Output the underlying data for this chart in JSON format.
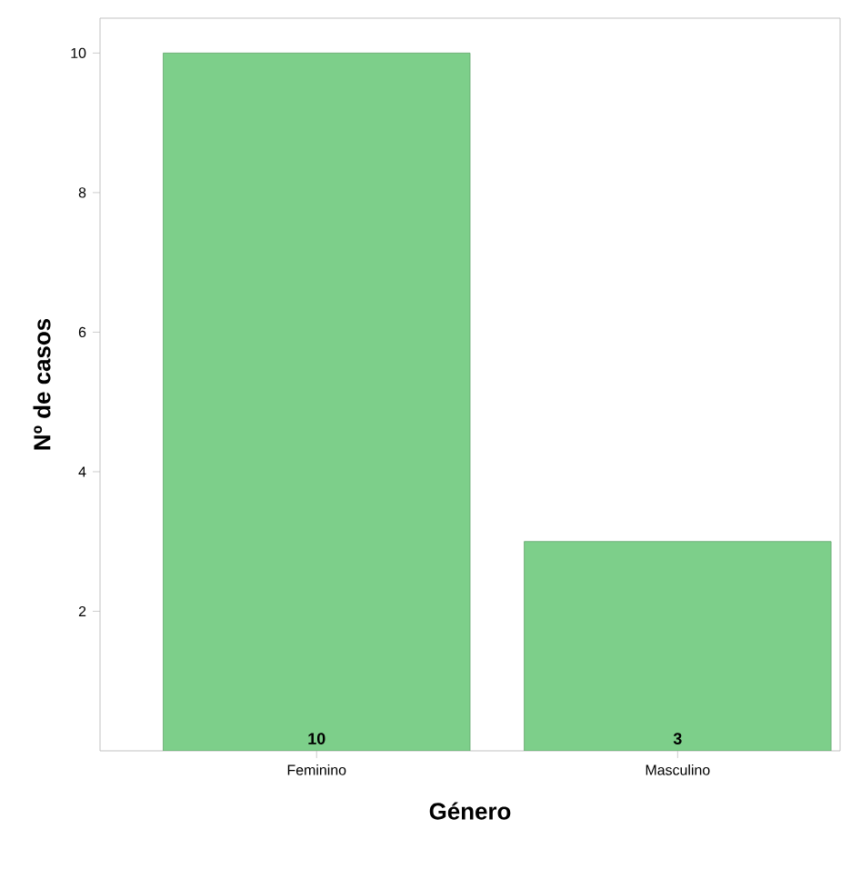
{
  "chart_data": {
    "type": "bar",
    "xlabel": "Género",
    "ylabel": "Nº de casos",
    "categories": [
      "Feminino",
      "Masculino"
    ],
    "values": [
      10,
      3
    ],
    "color": "#7dcf8a",
    "ylim": [
      0,
      10.5
    ],
    "yticks": [
      2,
      4,
      6,
      8,
      10
    ],
    "data_labels": true
  }
}
